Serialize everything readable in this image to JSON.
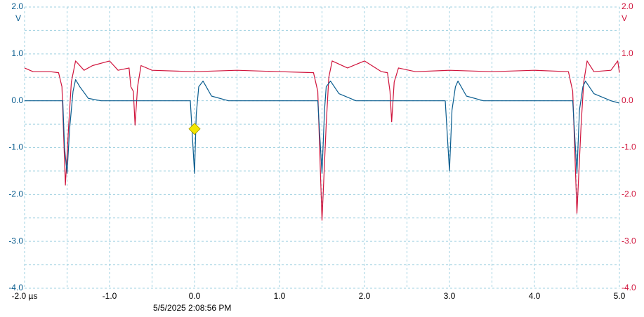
{
  "chart_data": {
    "type": "line",
    "xlim": [
      -2,
      5
    ],
    "ylim": [
      -4,
      2
    ],
    "y2lim": [
      -4,
      2
    ],
    "xticks": [
      {
        "value": -2,
        "label": "-2.0 µs"
      },
      {
        "value": -1,
        "label": "-1.0"
      },
      {
        "value": 0,
        "label": "0.0"
      },
      {
        "value": 1,
        "label": "1.0"
      },
      {
        "value": 2,
        "label": "2.0"
      },
      {
        "value": 3,
        "label": "3.0"
      },
      {
        "value": 4,
        "label": "4.0"
      },
      {
        "value": 5,
        "label": "5.0"
      }
    ],
    "yticks": [
      {
        "value": 2,
        "label": "2.0"
      },
      {
        "value": 1,
        "label": "1.0"
      },
      {
        "value": 0,
        "label": "0.0"
      },
      {
        "value": -1,
        "label": "-1.0"
      },
      {
        "value": -2,
        "label": "-2.0"
      },
      {
        "value": -3,
        "label": "-3.0"
      },
      {
        "value": -4,
        "label": "-4.0"
      }
    ],
    "y2ticks": [
      {
        "value": 2,
        "label": "2.0"
      },
      {
        "value": 1,
        "label": "1.0"
      },
      {
        "value": 0,
        "label": "0.0"
      },
      {
        "value": -1,
        "label": "-1.0"
      },
      {
        "value": -2,
        "label": "-2.0"
      },
      {
        "value": -3,
        "label": "-3.0"
      },
      {
        "value": -4,
        "label": "-4.0"
      }
    ],
    "y_unit": "V",
    "y2_unit": "V",
    "y_color": "#0a5d8f",
    "y2_color": "#d0143c",
    "grid": true,
    "timestamp": "5/5/2025 2:08:56 PM",
    "trigger": {
      "x": 0,
      "level": -0.6,
      "color": "#f2e600"
    },
    "series": [
      {
        "color": "#0a5d8f",
        "x": [
          -2.0,
          -1.6,
          -1.55,
          -1.53,
          -1.5,
          -1.47,
          -1.43,
          -1.4,
          -1.35,
          -1.25,
          -1.1,
          -0.05,
          0.0,
          0.02,
          0.05,
          0.1,
          0.2,
          0.4,
          1.45,
          1.5,
          1.53,
          1.55,
          1.6,
          1.7,
          1.9,
          2.95,
          3.0,
          3.03,
          3.07,
          3.1,
          3.2,
          3.4,
          4.45,
          4.5,
          4.53,
          4.57,
          4.6,
          4.7,
          4.9,
          5.0
        ],
        "values": [
          0.0,
          0.0,
          0.0,
          -1.0,
          -1.55,
          -0.6,
          0.2,
          0.45,
          0.3,
          0.05,
          0.0,
          0.0,
          -1.55,
          -0.3,
          0.3,
          0.42,
          0.1,
          0.0,
          0.0,
          -1.55,
          -0.2,
          0.3,
          0.42,
          0.15,
          0.0,
          0.0,
          -1.5,
          -0.2,
          0.3,
          0.42,
          0.1,
          0.0,
          0.0,
          -1.55,
          -0.2,
          0.3,
          0.42,
          0.15,
          0.0,
          -0.05
        ]
      },
      {
        "color": "#d0143c",
        "axis": "y2",
        "x": [
          -2.0,
          -1.9,
          -1.7,
          -1.6,
          -1.56,
          -1.52,
          -1.48,
          -1.45,
          -1.4,
          -1.3,
          -1.2,
          -1.0,
          -0.9,
          -0.77,
          -0.75,
          -0.72,
          -0.7,
          -0.67,
          -0.63,
          -0.5,
          0.0,
          0.5,
          1.0,
          1.4,
          1.45,
          1.5,
          1.55,
          1.58,
          1.62,
          1.8,
          2.0,
          2.2,
          2.27,
          2.3,
          2.32,
          2.35,
          2.4,
          2.6,
          3.0,
          3.5,
          4.0,
          4.4,
          4.45,
          4.5,
          4.55,
          4.58,
          4.62,
          4.7,
          4.9,
          4.98,
          5.0
        ],
        "values": [
          0.7,
          0.62,
          0.62,
          0.6,
          0.3,
          -1.8,
          -0.5,
          0.4,
          0.85,
          0.65,
          0.75,
          0.85,
          0.65,
          0.7,
          0.3,
          0.2,
          -0.52,
          0.3,
          0.75,
          0.65,
          0.62,
          0.65,
          0.62,
          0.6,
          0.2,
          -2.55,
          -0.5,
          0.5,
          0.85,
          0.7,
          0.85,
          0.62,
          0.6,
          0.2,
          -0.45,
          0.4,
          0.7,
          0.62,
          0.65,
          0.62,
          0.65,
          0.62,
          0.2,
          -2.4,
          -0.5,
          0.4,
          0.85,
          0.62,
          0.65,
          0.85,
          0.6
        ]
      }
    ]
  }
}
